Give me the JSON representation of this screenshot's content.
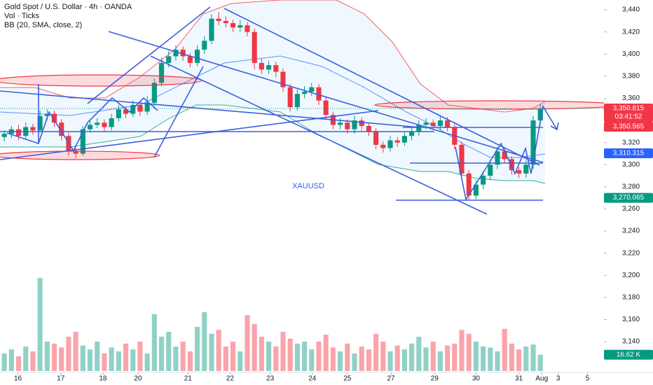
{
  "chart_data": {
    "type": "candlestick",
    "title": "Gold Spot / U.S. Dollar · 4h · OANDA",
    "indicators": [
      "Vol · Ticks",
      "BB (20, SMA, close, 2)"
    ],
    "symbol_label": "XAUUSD",
    "open": [
      3325,
      3328,
      3332,
      3326,
      3334,
      3331,
      3344,
      3346,
      3338,
      3326,
      3312,
      3310,
      3332,
      3336,
      3338,
      3334,
      3342,
      3350,
      3346,
      3354,
      3348,
      3356,
      3374,
      3392,
      3398,
      3404,
      3398,
      3392,
      3404,
      3412,
      3432,
      3430,
      3428,
      3424,
      3426,
      3420,
      3392,
      3386,
      3390,
      3384,
      3370,
      3352,
      3364,
      3366,
      3370,
      3358,
      3345,
      3336,
      3338,
      3332,
      3340,
      3335,
      3330,
      3318,
      3315,
      3322,
      3320,
      3326,
      3330,
      3336,
      3338,
      3335,
      3340,
      3334,
      3318,
      3292,
      3272,
      3282,
      3290,
      3300,
      3312,
      3305,
      3295,
      3292,
      3300,
      3340
    ],
    "high": [
      3331,
      3335,
      3336,
      3338,
      3337,
      3349,
      3350,
      3349,
      3341,
      3329,
      3316,
      3335,
      3340,
      3342,
      3341,
      3346,
      3354,
      3353,
      3358,
      3357,
      3362,
      3378,
      3397,
      3403,
      3408,
      3407,
      3401,
      3408,
      3416,
      3436,
      3438,
      3434,
      3431,
      3431,
      3429,
      3423,
      3396,
      3394,
      3393,
      3387,
      3373,
      3368,
      3371,
      3374,
      3373,
      3361,
      3348,
      3342,
      3341,
      3344,
      3343,
      3338,
      3333,
      3321,
      3326,
      3325,
      3330,
      3334,
      3340,
      3342,
      3341,
      3344,
      3343,
      3337,
      3321,
      3295,
      3286,
      3294,
      3304,
      3316,
      3315,
      3308,
      3298,
      3304,
      3344,
      3355
    ],
    "low": [
      3321,
      3324,
      3322,
      3323,
      3327,
      3329,
      3340,
      3334,
      3322,
      3308,
      3306,
      3308,
      3329,
      3333,
      3330,
      3331,
      3339,
      3342,
      3343,
      3344,
      3345,
      3353,
      3371,
      3388,
      3394,
      3394,
      3388,
      3389,
      3400,
      3409,
      3426,
      3424,
      3420,
      3420,
      3416,
      3386,
      3382,
      3382,
      3379,
      3366,
      3348,
      3349,
      3360,
      3362,
      3354,
      3341,
      3332,
      3332,
      3328,
      3328,
      3331,
      3326,
      3314,
      3311,
      3312,
      3316,
      3317,
      3322,
      3326,
      3332,
      3331,
      3331,
      3330,
      3314,
      3288,
      3268,
      3269,
      3278,
      3286,
      3296,
      3301,
      3291,
      3288,
      3288,
      3296,
      3336
    ],
    "close": [
      3328,
      3332,
      3326,
      3334,
      3331,
      3344,
      3346,
      3338,
      3326,
      3312,
      3310,
      3332,
      3336,
      3338,
      3334,
      3342,
      3350,
      3346,
      3354,
      3348,
      3356,
      3374,
      3392,
      3398,
      3404,
      3398,
      3392,
      3404,
      3412,
      3432,
      3430,
      3428,
      3424,
      3426,
      3420,
      3392,
      3386,
      3390,
      3384,
      3370,
      3352,
      3364,
      3366,
      3370,
      3358,
      3345,
      3336,
      3338,
      3332,
      3340,
      3335,
      3330,
      3318,
      3315,
      3322,
      3320,
      3326,
      3330,
      3336,
      3338,
      3335,
      3340,
      3334,
      3318,
      3292,
      3272,
      3282,
      3290,
      3300,
      3312,
      3305,
      3295,
      3292,
      3300,
      3340,
      3350.815
    ],
    "volume": [
      18,
      22,
      15,
      25,
      20,
      95,
      30,
      28,
      24,
      35,
      40,
      26,
      22,
      30,
      18,
      24,
      20,
      28,
      22,
      30,
      18,
      58,
      35,
      40,
      25,
      30,
      20,
      45,
      60,
      38,
      42,
      25,
      30,
      20,
      57,
      48,
      35,
      30,
      25,
      40,
      33,
      28,
      30,
      22,
      30,
      37,
      24,
      20,
      28,
      18,
      25,
      22,
      38,
      30,
      20,
      26,
      22,
      28,
      35,
      24,
      30,
      20,
      26,
      28,
      42,
      38,
      30,
      25,
      24,
      20,
      43,
      28,
      22,
      25,
      27,
      16.62
    ],
    "colors": {
      "up": "#089981",
      "down": "#f23645"
    },
    "volume_ylim": [
      0,
      100
    ],
    "xlim": [
      -0.6,
      83.9
    ],
    "xticks": [
      {
        "value": 1.9,
        "label": "16"
      },
      {
        "value": 7.9,
        "label": "17"
      },
      {
        "value": 13.8,
        "label": "18"
      },
      {
        "value": 18.7,
        "label": "20"
      },
      {
        "value": 25.7,
        "label": "21"
      },
      {
        "value": 31.6,
        "label": "22"
      },
      {
        "value": 37.2,
        "label": "23"
      },
      {
        "value": 43.1,
        "label": "24"
      },
      {
        "value": 48,
        "label": "25"
      },
      {
        "value": 54.1,
        "label": "27"
      },
      {
        "value": 60.2,
        "label": "29"
      },
      {
        "value": 66,
        "label": "30"
      },
      {
        "value": 72,
        "label": "31"
      },
      {
        "value": 75.2,
        "label": "Aug"
      },
      {
        "value": 77.5,
        "label": "3"
      },
      {
        "value": 81.6,
        "label": "5"
      }
    ],
    "ylim": [
      3112.2,
      3448.9
    ],
    "yticks": [
      {
        "value": 3140,
        "label": "3,140"
      },
      {
        "value": 3160,
        "label": "3,160"
      },
      {
        "value": 3180,
        "label": "3,180"
      },
      {
        "value": 3200,
        "label": "3,200"
      },
      {
        "value": 3220,
        "label": "3,220"
      },
      {
        "value": 3240,
        "label": "3,240"
      },
      {
        "value": 3260,
        "label": "3,260"
      },
      {
        "value": 3280,
        "label": "3,280"
      },
      {
        "value": 3300,
        "label": "3,300"
      },
      {
        "value": 3320,
        "label": "3,320"
      },
      {
        "value": 3340,
        "label": "3,340"
      },
      {
        "value": 3360,
        "label": "3,360"
      },
      {
        "value": 3380,
        "label": "3,380"
      },
      {
        "value": 3400,
        "label": "3,400"
      },
      {
        "value": 3420,
        "label": "3,420"
      },
      {
        "value": 3440,
        "label": "3,440"
      }
    ],
    "price_tags": [
      {
        "value": 3350.815,
        "label": "3,350.815",
        "color": "#f23645"
      },
      {
        "value": 3350.565,
        "label": "3,350.565",
        "color": "#f23645"
      },
      {
        "value": 3310.315,
        "label": "3,310.315",
        "color": "#2962ff"
      },
      {
        "value": 3270.065,
        "label": "3,270.065",
        "color": "#089981"
      }
    ],
    "countdown": "03:41:52",
    "volume_tag": {
      "value": 16.62,
      "label": "16.62 K",
      "color": "#089981"
    }
  }
}
